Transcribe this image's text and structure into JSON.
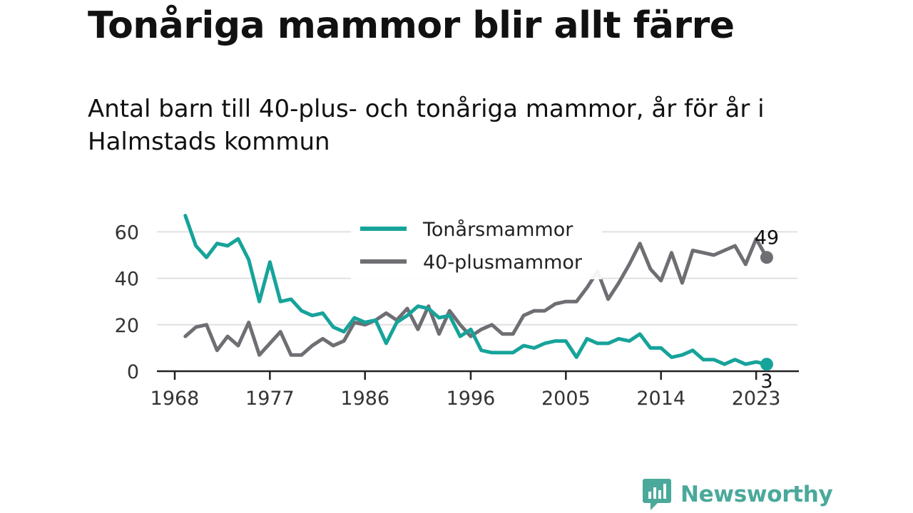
{
  "header": {
    "title": "Tonåriga mammor blir allt färre",
    "subtitle": "Antal barn till 40-plus- och tonåriga mammor, år för år i Halmstads kommun"
  },
  "brand": {
    "name": "Newsworthy",
    "color": "#4aa99a"
  },
  "chart_data": {
    "type": "line",
    "title": "Tonåriga mammor blir allt färre",
    "subtitle": "Antal barn till 40-plus- och tonåriga mammor, år för år i Halmstads kommun",
    "xlabel": "",
    "ylabel": "",
    "xlim": [
      1968,
      2024
    ],
    "ylim": [
      0,
      70
    ],
    "x_ticks": [
      1968,
      1977,
      1986,
      1996,
      2005,
      2014,
      2023
    ],
    "y_ticks": [
      0,
      20,
      40,
      60
    ],
    "grid": "horizontal",
    "legend_position": "top-center",
    "x": [
      1969,
      1970,
      1971,
      1972,
      1973,
      1974,
      1975,
      1976,
      1977,
      1978,
      1979,
      1980,
      1981,
      1982,
      1983,
      1984,
      1985,
      1986,
      1987,
      1988,
      1989,
      1990,
      1991,
      1992,
      1993,
      1994,
      1995,
      1996,
      1997,
      1998,
      1999,
      2000,
      2001,
      2002,
      2003,
      2004,
      2005,
      2006,
      2007,
      2008,
      2009,
      2010,
      2011,
      2012,
      2013,
      2014,
      2015,
      2016,
      2017,
      2018,
      2019,
      2020,
      2021,
      2022,
      2023,
      2024
    ],
    "series": [
      {
        "name": "Tonårsmammor",
        "color": "#16a39a",
        "end_label": "3",
        "values": [
          67,
          54,
          49,
          55,
          54,
          57,
          48,
          30,
          47,
          30,
          31,
          26,
          24,
          25,
          19,
          17,
          23,
          21,
          22,
          12,
          21,
          24,
          28,
          27,
          23,
          24,
          15,
          18,
          9,
          8,
          8,
          8,
          11,
          10,
          12,
          13,
          13,
          6,
          14,
          12,
          12,
          14,
          13,
          16,
          10,
          10,
          6,
          7,
          9,
          5,
          5,
          3,
          5,
          3,
          4,
          3
        ]
      },
      {
        "name": "40-plusmammor",
        "color": "#6e6e73",
        "end_label": "49",
        "values": [
          15,
          19,
          20,
          9,
          15,
          11,
          21,
          7,
          12,
          17,
          7,
          7,
          11,
          14,
          11,
          13,
          21,
          20,
          22,
          25,
          22,
          27,
          18,
          28,
          16,
          26,
          20,
          15,
          18,
          20,
          16,
          16,
          24,
          26,
          26,
          29,
          30,
          30,
          36,
          43,
          31,
          38,
          46,
          55,
          44,
          39,
          51,
          38,
          52,
          51,
          50,
          52,
          54,
          46,
          57,
          49
        ]
      }
    ]
  }
}
